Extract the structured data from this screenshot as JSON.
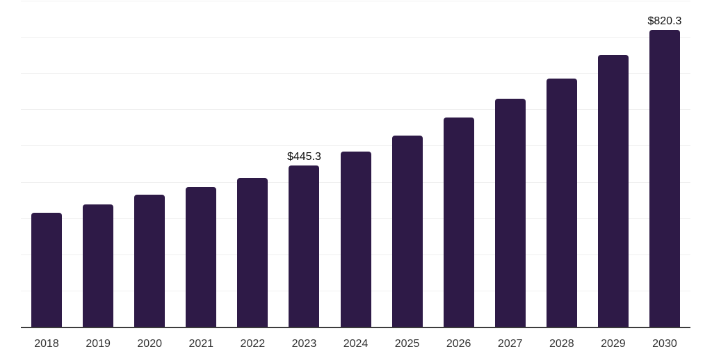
{
  "chart_data": {
    "type": "bar",
    "title": "",
    "xlabel": "",
    "ylabel": "",
    "categories": [
      "2018",
      "2019",
      "2020",
      "2021",
      "2022",
      "2023",
      "2024",
      "2025",
      "2026",
      "2027",
      "2028",
      "2029",
      "2030"
    ],
    "values": [
      314,
      337,
      365,
      385,
      410,
      445.3,
      484,
      528,
      577,
      629,
      686,
      750,
      820.3
    ],
    "data_labels": [
      {
        "category": "2023",
        "text": "$445.3"
      },
      {
        "category": "2030",
        "text": "$820.3"
      }
    ],
    "ylim": [
      0,
      900
    ],
    "gridline_interval": 100,
    "grid": "horizontal",
    "y_axis_tick_labels": "none",
    "legend": "none",
    "colors": {
      "bar": "#2e1a47",
      "gridline": "#f0f0f0",
      "axis_line": "#3c3c3c",
      "tick_label": "#333333",
      "data_label": "#111111",
      "background": "#ffffff"
    }
  }
}
